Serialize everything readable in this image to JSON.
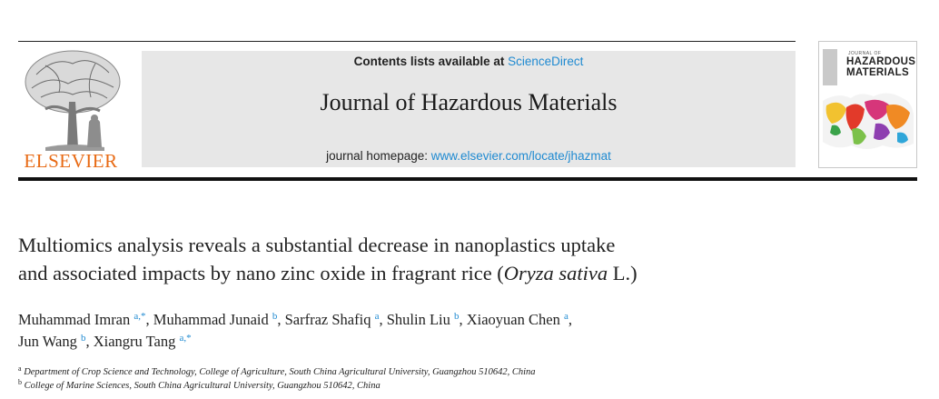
{
  "header": {
    "publisher": "ELSEVIER",
    "contents_prefix": "Contents lists available at ",
    "contents_link": "ScienceDirect",
    "journal_title": "Journal of Hazardous Materials",
    "homepage_prefix": "journal homepage: ",
    "homepage_link": "www.elsevier.com/locate/jhazmat",
    "cover": {
      "small_text": "JOURNAL OF",
      "line1": "HAZARDOUS",
      "line2": "MATERIALS"
    }
  },
  "article": {
    "title_line1": "Multiomics analysis reveals a substantial decrease in nanoplastics uptake",
    "title_line2_prefix": "and associated impacts by nano zinc oxide in fragrant rice (",
    "title_species": "Oryza sativa",
    "title_line2_suffix": " L.)",
    "authors": [
      {
        "name": "Muhammad Imran",
        "sup": "a,*"
      },
      {
        "name": "Muhammad Junaid",
        "sup": "b"
      },
      {
        "name": "Sarfraz Shafiq",
        "sup": "a"
      },
      {
        "name": "Shulin Liu",
        "sup": "b"
      },
      {
        "name": "Xiaoyuan Chen",
        "sup": "a"
      },
      {
        "name": "Jun Wang",
        "sup": "b"
      },
      {
        "name": "Xiangru Tang",
        "sup": "a,*"
      }
    ],
    "affiliations": [
      {
        "key": "a",
        "text": "Department of Crop Science and Technology, College of Agriculture, South China Agricultural University, Guangzhou 510642, China"
      },
      {
        "key": "b",
        "text": "College of Marine Sciences, South China Agricultural University, Guangzhou 510642, China"
      }
    ]
  },
  "colors": {
    "link": "#1f8ad1",
    "publisher_orange": "#e86a14",
    "masthead_bg": "#e7e7e7"
  }
}
